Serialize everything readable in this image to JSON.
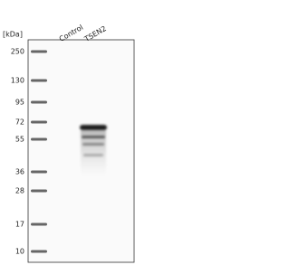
{
  "header": {
    "unit": "[kDa]",
    "lanes": [
      "Control",
      "TSEN2"
    ]
  },
  "markers": [
    "250",
    "130",
    "95",
    "72",
    "55",
    "36",
    "28",
    "17",
    "10"
  ]
}
